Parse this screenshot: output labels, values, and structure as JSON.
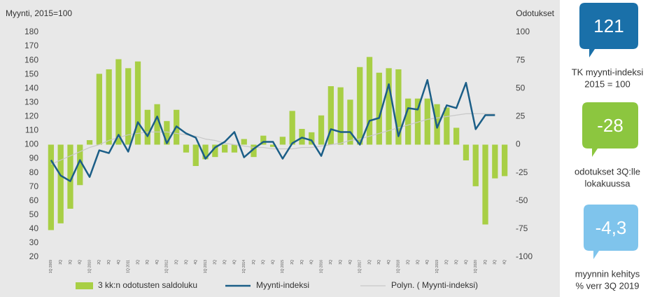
{
  "chart_data": {
    "type": "bar-line",
    "ylabel": "Myynti,  2015=100",
    "y2label": "Odotukset",
    "categories": [
      "1Q 2009",
      "2Q",
      "3Q",
      "4Q",
      "1Q 2010",
      "2Q",
      "3Q",
      "4Q",
      "1Q 2011",
      "2Q",
      "3Q",
      "4Q",
      "1Q 2012",
      "2Q",
      "3Q",
      "4Q",
      "1Q 2013",
      "2Q",
      "3Q",
      "4Q",
      "1Q 2014",
      "2Q",
      "3Q",
      "4Q",
      "1Q 2015",
      "2Q",
      "3Q",
      "4Q",
      "1Q 2016",
      "2Q",
      "3Q",
      "4Q",
      "1Q 2017",
      "2Q",
      "3Q",
      "4Q",
      "1Q 2018",
      "2Q",
      "3Q",
      "4Q",
      "1Q 2019",
      "2Q",
      "3Q",
      "4Q",
      "1Q 2020",
      "2Q",
      "3Q",
      "4Q"
    ],
    "series": [
      {
        "name": "3 kk:n odotusten saldoluku",
        "type": "bar",
        "axis": "y2",
        "color": "#a8cf45",
        "values": [
          -76,
          -70,
          -57,
          -36,
          4,
          63,
          67,
          76,
          68,
          74,
          31,
          36,
          21,
          31,
          -7,
          -19,
          -13,
          -11,
          -7,
          -7,
          5,
          -11,
          8,
          -2,
          7,
          30,
          14,
          11,
          26,
          52,
          51,
          40,
          69,
          78,
          64,
          68,
          67,
          41,
          41,
          41,
          36,
          33,
          15,
          -14,
          -37,
          -71,
          -30,
          -28
        ]
      },
      {
        "name": "Myynti-indeksi",
        "type": "line",
        "color": "#1b5e87",
        "values": [
          89,
          78,
          74,
          89,
          77,
          96,
          94,
          107,
          95,
          116,
          106,
          120,
          101,
          113,
          108,
          105,
          90,
          98,
          102,
          109,
          91,
          97,
          102,
          102,
          90,
          101,
          105,
          103,
          92,
          111,
          109,
          109,
          100,
          117,
          119,
          143,
          106,
          126,
          125,
          146,
          112,
          128,
          126,
          144,
          111,
          121,
          121,
          null
        ]
      },
      {
        "name": "Polyn. ( Myynti-indeksi)",
        "type": "line",
        "color": "#c8c8c8",
        "values": [
          86,
          89,
          92,
          95,
          98,
          100,
          103,
          105,
          107,
          108,
          109,
          109,
          109,
          108,
          107,
          106,
          104,
          103,
          101,
          100,
          99,
          98,
          98,
          97,
          97,
          97,
          98,
          98,
          99,
          100,
          101,
          103,
          104,
          106,
          108,
          110,
          112,
          114,
          116,
          118,
          119,
          120,
          121,
          122,
          122,
          122,
          122,
          null
        ]
      }
    ],
    "ylim": [
      20,
      180
    ],
    "yticks": [
      20,
      30,
      40,
      50,
      60,
      70,
      80,
      90,
      100,
      110,
      120,
      130,
      140,
      150,
      160,
      170,
      180
    ],
    "y2lim": [
      -100,
      100
    ],
    "y2ticks": [
      -100,
      -75,
      -50,
      -25,
      0,
      25,
      50,
      75,
      100
    ]
  },
  "panels": [
    {
      "value": "121",
      "label": [
        "TK myynti-indeksi",
        "2015 = 100"
      ],
      "color": "#1a70a9"
    },
    {
      "value": "-28",
      "label": [
        "odotukset 3Q:lle",
        "lokakuussa"
      ],
      "color": "#8cc63f"
    },
    {
      "value": "-4,3",
      "label": [
        "myynnin kehitys",
        "% verr 3Q 2019"
      ],
      "color": "#7fc4ec"
    }
  ]
}
